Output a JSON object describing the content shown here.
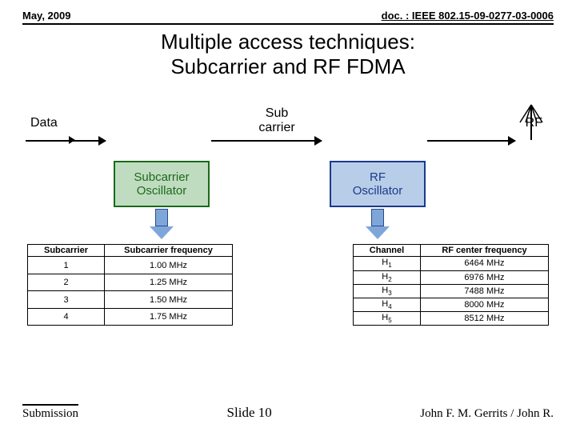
{
  "header": {
    "date": "May, 2009",
    "docref": "doc. : IEEE 802.15-09-0277-03-0006"
  },
  "title_l1": "Multiple access techniques:",
  "title_l2": "Subcarrier and RF FDMA",
  "diagram": {
    "label_data": "Data",
    "label_sub_l1": "Sub",
    "label_sub_l2": "carrier",
    "label_rf": "RF",
    "box1_l1": "Subcarrier",
    "box1_l2": "Oscillator",
    "box2_l1": "RF",
    "box2_l2": "Oscillator",
    "colors": {
      "green_fill": "#c0dcc0",
      "green_stroke": "#1a6a1a",
      "blue_fill": "#b8cde8",
      "blue_stroke": "#1a3a8a",
      "arrow_fill": "#7fa6d9",
      "arrow_stroke": "#2a4a8a"
    }
  },
  "table1": {
    "headers": [
      "Subcarrier",
      "Subcarrier frequency"
    ],
    "rows": [
      [
        "1",
        "1.00 MHz"
      ],
      [
        "2",
        "1.25 MHz"
      ],
      [
        "3",
        "1.50 MHz"
      ],
      [
        "4",
        "1.75 MHz"
      ]
    ]
  },
  "table2": {
    "headers": [
      "Channel",
      "RF center frequency"
    ],
    "rows": [
      [
        {
          "base": "H",
          "sub": "1"
        },
        "6464 MHz"
      ],
      [
        {
          "base": "H",
          "sub": "2"
        },
        "6976 MHz"
      ],
      [
        {
          "base": "H",
          "sub": "3"
        },
        "7488 MHz"
      ],
      [
        {
          "base": "H",
          "sub": "4"
        },
        "8000 MHz"
      ],
      [
        {
          "base": "H",
          "sub": "5"
        },
        "8512 MHz"
      ]
    ]
  },
  "footer": {
    "submission": "Submission",
    "slide": "Slide 10",
    "author": "John F. M. Gerrits / John R."
  }
}
